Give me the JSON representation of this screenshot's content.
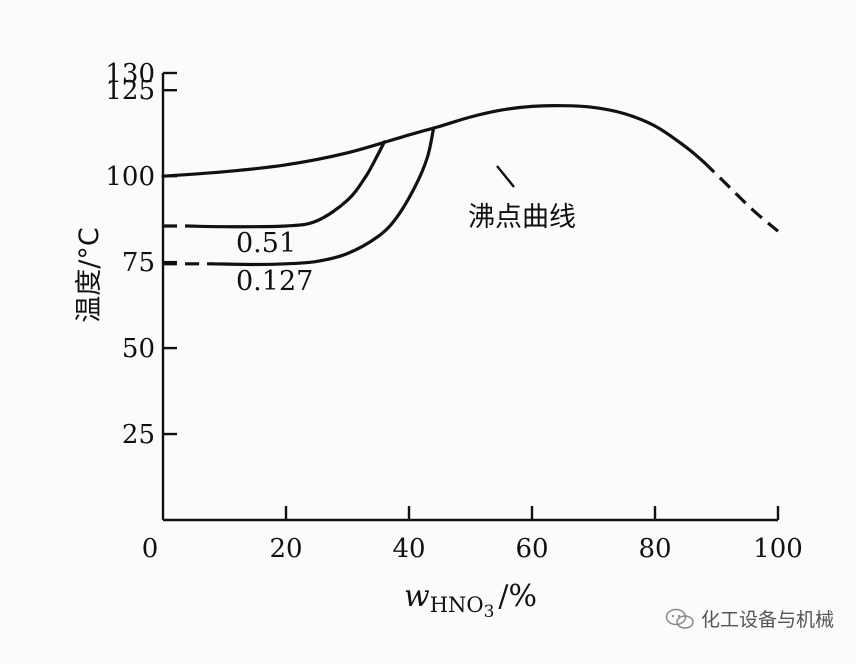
{
  "chart_data": {
    "type": "line",
    "ylabel": "温度/°C",
    "xlabel": {
      "var": "w",
      "subscript": "HNO",
      "subscript2": "3",
      "unit": "/%"
    },
    "xlim": [
      0,
      100
    ],
    "ylim": [
      0,
      130
    ],
    "x_ticks": [
      "0",
      "20",
      "40",
      "60",
      "80",
      "100"
    ],
    "y_ticks": [
      "25",
      "50",
      "75",
      "100",
      "125",
      "130"
    ],
    "grid": false,
    "series": [
      {
        "name": "沸点曲线",
        "solid": [
          [
            0,
            100
          ],
          [
            10,
            101.3
          ],
          [
            20,
            103.3
          ],
          [
            30,
            106.8
          ],
          [
            40,
            112
          ],
          [
            45,
            114.5
          ],
          [
            50,
            117.2
          ],
          [
            55,
            119.2
          ],
          [
            60,
            120.3
          ],
          [
            65,
            120.5
          ],
          [
            70,
            120
          ],
          [
            75,
            118.2
          ],
          [
            80,
            114.6
          ],
          [
            85,
            108.5
          ],
          [
            88,
            104
          ]
        ],
        "dashed": [
          [
            88,
            104
          ],
          [
            92,
            97
          ],
          [
            96,
            90
          ],
          [
            100,
            84
          ]
        ]
      },
      {
        "name": "0.51",
        "dashed": [
          [
            0,
            85.5
          ],
          [
            4,
            85.5
          ]
        ],
        "solid": [
          [
            4,
            85.5
          ],
          [
            10,
            85.3
          ],
          [
            20,
            85.5
          ],
          [
            25,
            87
          ],
          [
            30,
            93
          ],
          [
            33,
            100
          ],
          [
            35,
            106.5
          ],
          [
            36,
            110
          ]
        ]
      },
      {
        "name": "0.127",
        "dashed": [
          [
            0,
            74.5
          ],
          [
            8,
            74.5
          ]
        ],
        "solid": [
          [
            8,
            74.5
          ],
          [
            15,
            74.3
          ],
          [
            20,
            74.5
          ],
          [
            25,
            75.2
          ],
          [
            30,
            77.5
          ],
          [
            35,
            82.5
          ],
          [
            38,
            88
          ],
          [
            41,
            97
          ],
          [
            43,
            105.5
          ],
          [
            44,
            114
          ]
        ]
      }
    ]
  },
  "watermark": "化工设备与机械"
}
